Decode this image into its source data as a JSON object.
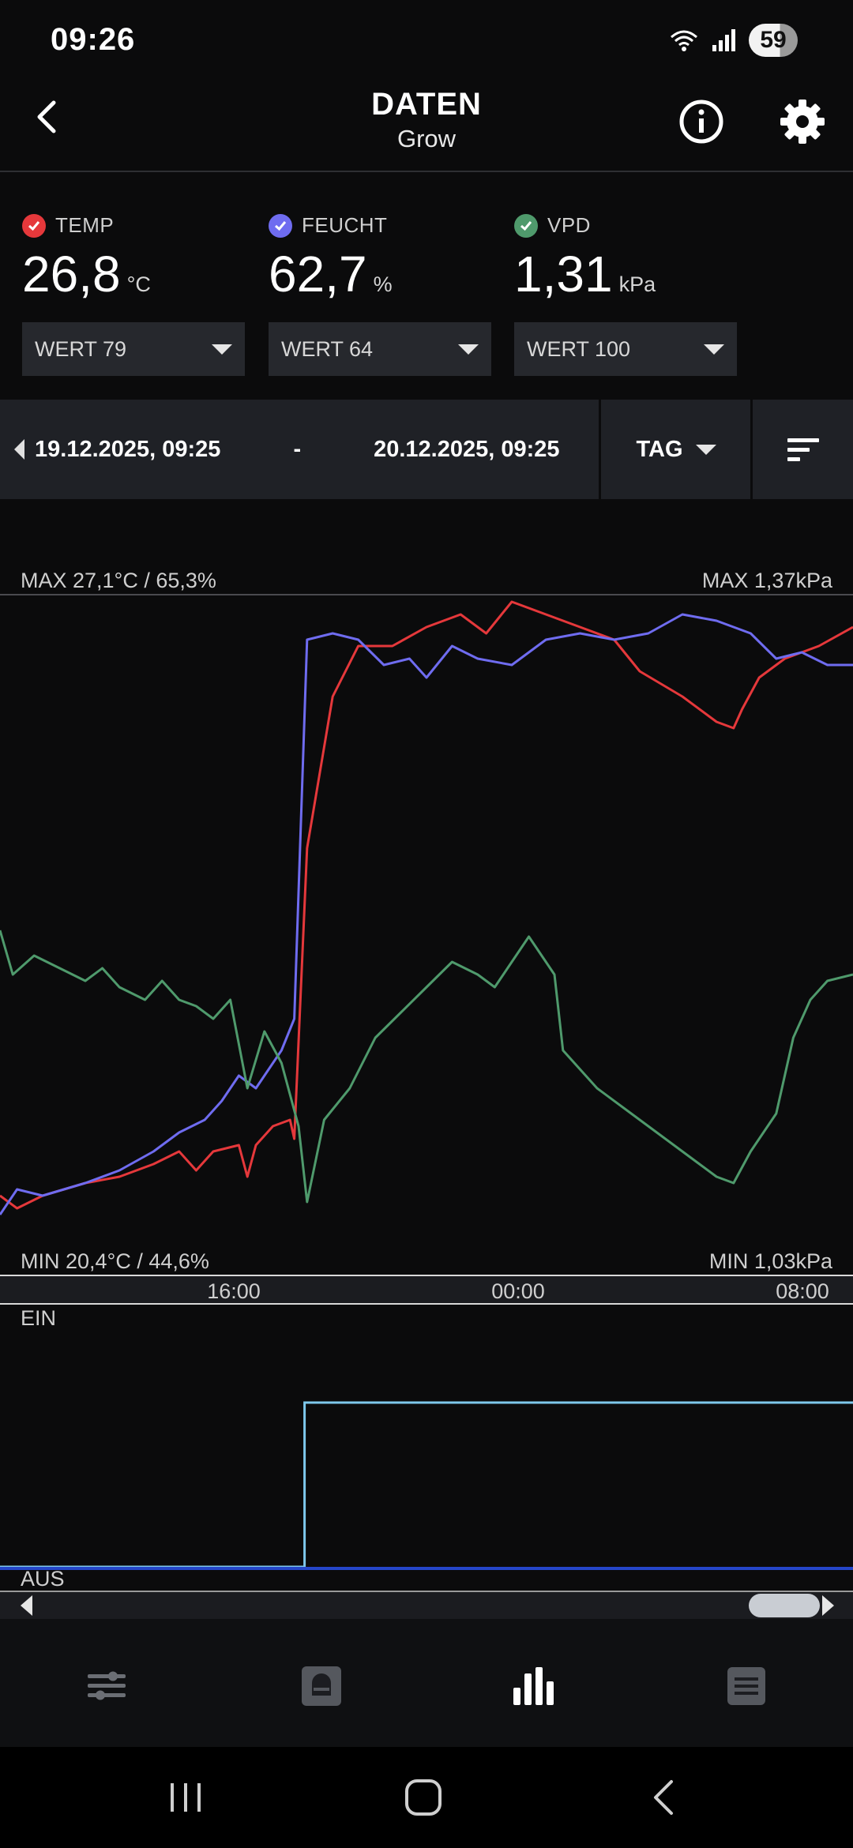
{
  "status_bar": {
    "time": "09:26",
    "battery": "59"
  },
  "header": {
    "title": "DATEN",
    "subtitle": "Grow"
  },
  "sensors": [
    {
      "label": "TEMP",
      "value": "26,8",
      "unit": "°C",
      "check_color": "#e5383b",
      "dropdown": "WERT 79"
    },
    {
      "label": "FEUCHT",
      "value": "62,7",
      "unit": "%",
      "check_color": "#6f6cf0",
      "dropdown": "WERT 64"
    },
    {
      "label": "VPD",
      "value": "1,31",
      "unit": "kPa",
      "check_color": "#4f9a6c",
      "dropdown": "WERT 100"
    }
  ],
  "range": {
    "start": "19.12.2025, 09:25",
    "separator": "-",
    "end": "20.12.2025, 09:25",
    "period": "TAG"
  },
  "chart": {
    "max_left": "MAX 27,1°C / 65,3%",
    "max_right": "MAX 1,37kPa",
    "min_left": "MIN 20,4°C / 44,6%",
    "min_right": "MIN 1,03kPa",
    "time_ticks": [
      "16:00",
      "00:00",
      "08:00"
    ],
    "switch_on": "EIN",
    "switch_off": "AUS",
    "colors": {
      "temp": "#e5383b",
      "humidity": "#6f6cf0",
      "vpd": "#4f9a6c",
      "switch": "#7ec8ec"
    }
  },
  "chart_data": {
    "type": "line",
    "x_range": [
      "19.12.2025, 09:25",
      "20.12.2025, 09:25"
    ],
    "x_ticks": [
      "16:00",
      "00:00",
      "08:00"
    ],
    "series": [
      {
        "name": "TEMP",
        "unit": "°C",
        "range": [
          20.4,
          27.1
        ],
        "points": [
          [
            0,
            0.05
          ],
          [
            0.02,
            0.03
          ],
          [
            0.05,
            0.05
          ],
          [
            0.1,
            0.07
          ],
          [
            0.14,
            0.08
          ],
          [
            0.18,
            0.1
          ],
          [
            0.21,
            0.12
          ],
          [
            0.23,
            0.09
          ],
          [
            0.25,
            0.12
          ],
          [
            0.28,
            0.13
          ],
          [
            0.29,
            0.08
          ],
          [
            0.3,
            0.13
          ],
          [
            0.32,
            0.16
          ],
          [
            0.34,
            0.17
          ],
          [
            0.345,
            0.14
          ],
          [
            0.36,
            0.6
          ],
          [
            0.39,
            0.84
          ],
          [
            0.42,
            0.92
          ],
          [
            0.46,
            0.92
          ],
          [
            0.5,
            0.95
          ],
          [
            0.54,
            0.97
          ],
          [
            0.57,
            0.94
          ],
          [
            0.6,
            0.99
          ],
          [
            0.64,
            0.97
          ],
          [
            0.68,
            0.95
          ],
          [
            0.72,
            0.93
          ],
          [
            0.75,
            0.88
          ],
          [
            0.8,
            0.84
          ],
          [
            0.84,
            0.8
          ],
          [
            0.86,
            0.79
          ],
          [
            0.87,
            0.82
          ],
          [
            0.89,
            0.87
          ],
          [
            0.92,
            0.9
          ],
          [
            0.96,
            0.92
          ],
          [
            1.0,
            0.95
          ]
        ]
      },
      {
        "name": "FEUCHT",
        "unit": "%",
        "range": [
          44.6,
          65.3
        ],
        "points": [
          [
            0,
            0.02
          ],
          [
            0.02,
            0.06
          ],
          [
            0.05,
            0.05
          ],
          [
            0.1,
            0.07
          ],
          [
            0.14,
            0.09
          ],
          [
            0.18,
            0.12
          ],
          [
            0.21,
            0.15
          ],
          [
            0.24,
            0.17
          ],
          [
            0.26,
            0.2
          ],
          [
            0.28,
            0.24
          ],
          [
            0.3,
            0.22
          ],
          [
            0.33,
            0.28
          ],
          [
            0.345,
            0.33
          ],
          [
            0.36,
            0.93
          ],
          [
            0.39,
            0.94
          ],
          [
            0.42,
            0.93
          ],
          [
            0.45,
            0.89
          ],
          [
            0.48,
            0.9
          ],
          [
            0.5,
            0.87
          ],
          [
            0.53,
            0.92
          ],
          [
            0.56,
            0.9
          ],
          [
            0.6,
            0.89
          ],
          [
            0.64,
            0.93
          ],
          [
            0.68,
            0.94
          ],
          [
            0.72,
            0.93
          ],
          [
            0.76,
            0.94
          ],
          [
            0.8,
            0.97
          ],
          [
            0.84,
            0.96
          ],
          [
            0.88,
            0.94
          ],
          [
            0.91,
            0.9
          ],
          [
            0.94,
            0.91
          ],
          [
            0.97,
            0.89
          ],
          [
            1.0,
            0.89
          ]
        ]
      },
      {
        "name": "VPD",
        "unit": "kPa",
        "range": [
          1.03,
          1.37
        ],
        "points": [
          [
            0,
            0.47
          ],
          [
            0.015,
            0.4
          ],
          [
            0.04,
            0.43
          ],
          [
            0.07,
            0.41
          ],
          [
            0.1,
            0.39
          ],
          [
            0.12,
            0.41
          ],
          [
            0.14,
            0.38
          ],
          [
            0.17,
            0.36
          ],
          [
            0.19,
            0.39
          ],
          [
            0.21,
            0.36
          ],
          [
            0.23,
            0.35
          ],
          [
            0.25,
            0.33
          ],
          [
            0.27,
            0.36
          ],
          [
            0.29,
            0.22
          ],
          [
            0.31,
            0.31
          ],
          [
            0.33,
            0.26
          ],
          [
            0.35,
            0.16
          ],
          [
            0.36,
            0.04
          ],
          [
            0.38,
            0.17
          ],
          [
            0.41,
            0.22
          ],
          [
            0.44,
            0.3
          ],
          [
            0.47,
            0.34
          ],
          [
            0.5,
            0.38
          ],
          [
            0.53,
            0.42
          ],
          [
            0.56,
            0.4
          ],
          [
            0.58,
            0.38
          ],
          [
            0.6,
            0.42
          ],
          [
            0.62,
            0.46
          ],
          [
            0.65,
            0.4
          ],
          [
            0.66,
            0.28
          ],
          [
            0.7,
            0.22
          ],
          [
            0.74,
            0.18
          ],
          [
            0.78,
            0.14
          ],
          [
            0.82,
            0.1
          ],
          [
            0.84,
            0.08
          ],
          [
            0.86,
            0.07
          ],
          [
            0.88,
            0.12
          ],
          [
            0.91,
            0.18
          ],
          [
            0.93,
            0.3
          ],
          [
            0.95,
            0.36
          ],
          [
            0.97,
            0.39
          ],
          [
            1.0,
            0.4
          ]
        ]
      }
    ]
  },
  "switch_data": {
    "points": [
      [
        0,
        0
      ],
      [
        0.357,
        0
      ],
      [
        0.357,
        1
      ],
      [
        1.0,
        1
      ]
    ]
  },
  "nav": {
    "items": [
      "sliders-icon",
      "device-icon",
      "chart-icon",
      "list-icon"
    ],
    "active": 2
  }
}
